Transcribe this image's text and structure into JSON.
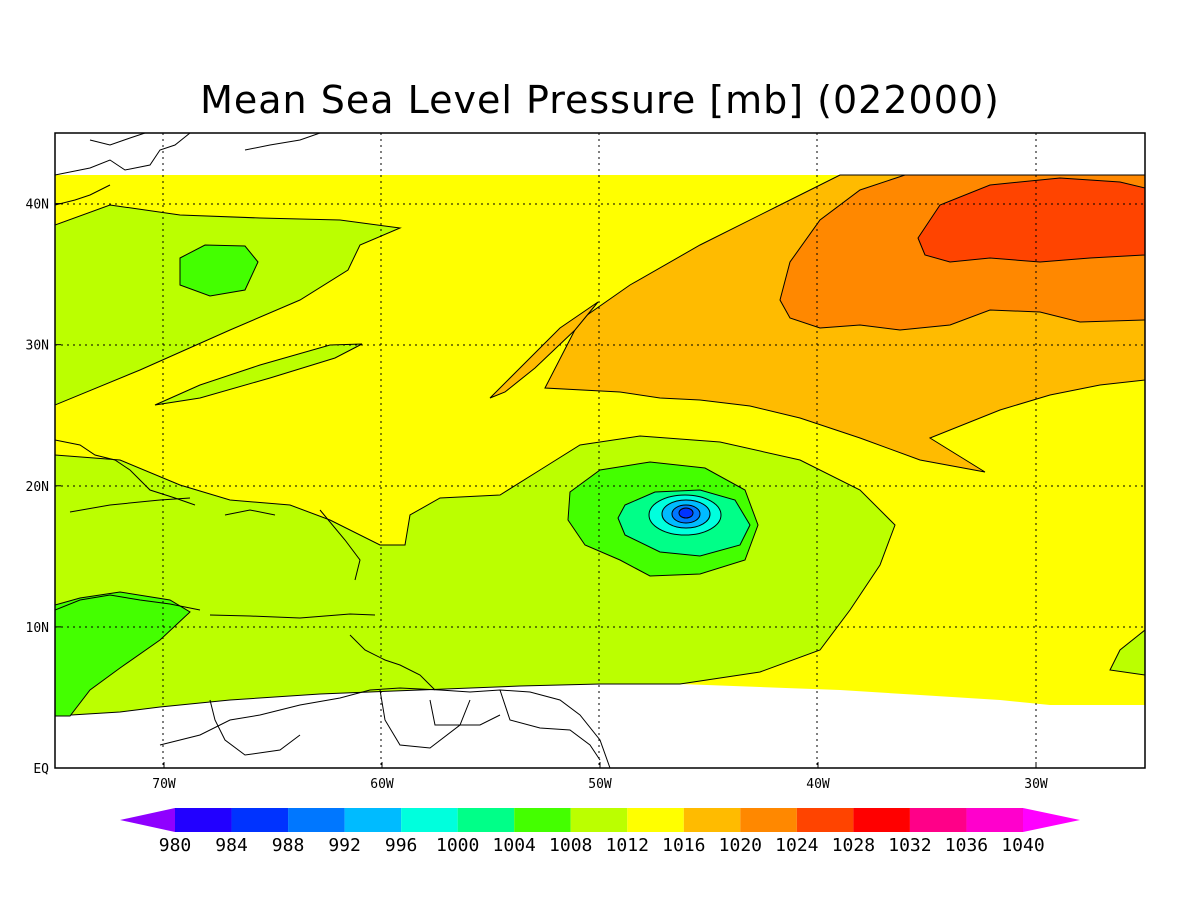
{
  "title": "Mean Sea Level Pressure [mb] (022000)",
  "map": {
    "lon_range": [
      -75,
      -25
    ],
    "lat_range": [
      0,
      45
    ],
    "data_lat_range": [
      4,
      42
    ],
    "x_ticks": [
      {
        "lon": -70,
        "label": "70W"
      },
      {
        "lon": -60,
        "label": "60W"
      },
      {
        "lon": -50,
        "label": "50W"
      },
      {
        "lon": -40,
        "label": "40W"
      },
      {
        "lon": -30,
        "label": "30W"
      }
    ],
    "y_ticks": [
      {
        "lat": 0,
        "label": "EQ"
      },
      {
        "lat": 10,
        "label": "10N"
      },
      {
        "lat": 20,
        "label": "20N"
      },
      {
        "lat": 30,
        "label": "30N"
      },
      {
        "lat": 40,
        "label": "40N"
      }
    ],
    "grid": "dotted",
    "background_level": 1014,
    "low_pressure_center": {
      "lon": -46,
      "lat": 18,
      "min_level": 984
    }
  },
  "colorbar": {
    "levels": [
      980,
      984,
      988,
      992,
      996,
      1000,
      1004,
      1008,
      1012,
      1016,
      1020,
      1024,
      1028,
      1032,
      1036,
      1040
    ],
    "colors": [
      "#8f00ff",
      "#2200ff",
      "#0033ff",
      "#0077ff",
      "#00bbff",
      "#00ffdd",
      "#00ff88",
      "#44ff00",
      "#bbff00",
      "#ffff00",
      "#ffbb00",
      "#ff8800",
      "#ff4400",
      "#ff0000",
      "#ff0088",
      "#ff00cc",
      "#ff00ff"
    ],
    "labels": [
      "980",
      "984",
      "988",
      "992",
      "996",
      "1000",
      "1004",
      "1008",
      "1012",
      "1016",
      "1020",
      "1024",
      "1028",
      "1032",
      "1036",
      "1040"
    ]
  }
}
